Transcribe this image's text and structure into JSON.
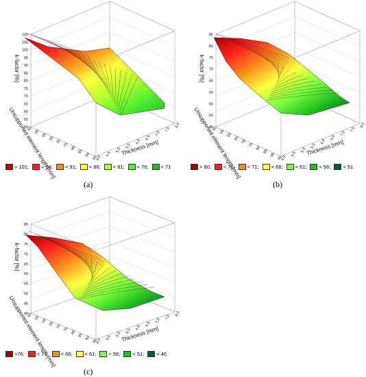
{
  "chart_data": [
    {
      "type": "surface",
      "panel": "(a)",
      "zlabel": "k-factor [%]",
      "xlabel": "Thickness [mm]",
      "ylabel": "Unsupported element length [mm]",
      "z_ticks": [
        "110",
        "105",
        "100",
        "95",
        "90",
        "85",
        "80",
        "75",
        "70",
        "65",
        "60",
        "55",
        "50"
      ],
      "x_ticks": [
        "4.0",
        "4.5",
        "5.0",
        "5.5",
        "6.0",
        "6.5",
        "7.0",
        "7.5",
        "8.0"
      ],
      "y_ticks": [
        "50",
        "55",
        "60",
        "65",
        "70",
        "75",
        "80",
        "85",
        "90",
        "95"
      ],
      "zlim": [
        50,
        110
      ],
      "legend": [
        {
          "label": "> 101;",
          "color": "#c00000"
        },
        {
          "label": "< 96;",
          "color": "#ff2020"
        },
        {
          "label": "< 91;",
          "color": "#ff8c1a"
        },
        {
          "label": "< 86;",
          "color": "#ffff40"
        },
        {
          "label": "< 81;",
          "color": "#b4ff30"
        },
        {
          "label": "< 76;",
          "color": "#50ee30"
        },
        {
          "label": "< 71",
          "color": "#20c020"
        }
      ]
    },
    {
      "type": "surface",
      "panel": "(b)",
      "zlabel": "k-factor [%]",
      "xlabel": "Thickness [mm]",
      "ylabel": "Unsupported element length [mm]",
      "z_ticks": [
        "85",
        "80",
        "75",
        "70",
        "65",
        "60",
        "55",
        "50",
        "45"
      ],
      "x_ticks": [
        "4.0",
        "4.5",
        "5.0",
        "5.5",
        "6.0",
        "6.5",
        "7.0",
        "7.5",
        "8.0"
      ],
      "y_ticks": [
        "50",
        "55",
        "60",
        "65",
        "70",
        "75",
        "80",
        "85",
        "90",
        "95"
      ],
      "zlim": [
        45,
        85
      ],
      "legend": [
        {
          "label": "> 80;",
          "color": "#a00000"
        },
        {
          "label": "< 76;",
          "color": "#ff2020"
        },
        {
          "label": "< 71;",
          "color": "#ff8c1a"
        },
        {
          "label": "< 66;",
          "color": "#ffff40"
        },
        {
          "label": "< 61;",
          "color": "#80ff40"
        },
        {
          "label": "< 56;",
          "color": "#20c020"
        },
        {
          "label": "< 51",
          "color": "#006030"
        }
      ]
    },
    {
      "type": "surface",
      "panel": "(c)",
      "zlabel": "k-factor [%]",
      "xlabel": "Thickness [mm]",
      "ylabel": "Unsupported element length [mm]",
      "z_ticks": [
        "85",
        "80",
        "75",
        "70",
        "65",
        "60",
        "55",
        "50",
        "45",
        "40"
      ],
      "x_ticks": [
        "4.0",
        "4.5",
        "5.0",
        "5.5",
        "6.0",
        "6.5",
        "7.0",
        "7.5",
        "8.0"
      ],
      "y_ticks": [
        "50",
        "55",
        "60",
        "65",
        "70",
        "75",
        "80",
        "85",
        "90",
        "95"
      ],
      "zlim": [
        40,
        85
      ],
      "legend": [
        {
          "label": ">76;",
          "color": "#a00000"
        },
        {
          "label": "< 71;",
          "color": "#ff2020"
        },
        {
          "label": "< 66;",
          "color": "#ff8c1a"
        },
        {
          "label": "< 61;",
          "color": "#ffff40"
        },
        {
          "label": "< 56;",
          "color": "#80ff40"
        },
        {
          "label": "< 51;",
          "color": "#20c020"
        },
        {
          "label": "< 46",
          "color": "#006030"
        }
      ]
    }
  ]
}
